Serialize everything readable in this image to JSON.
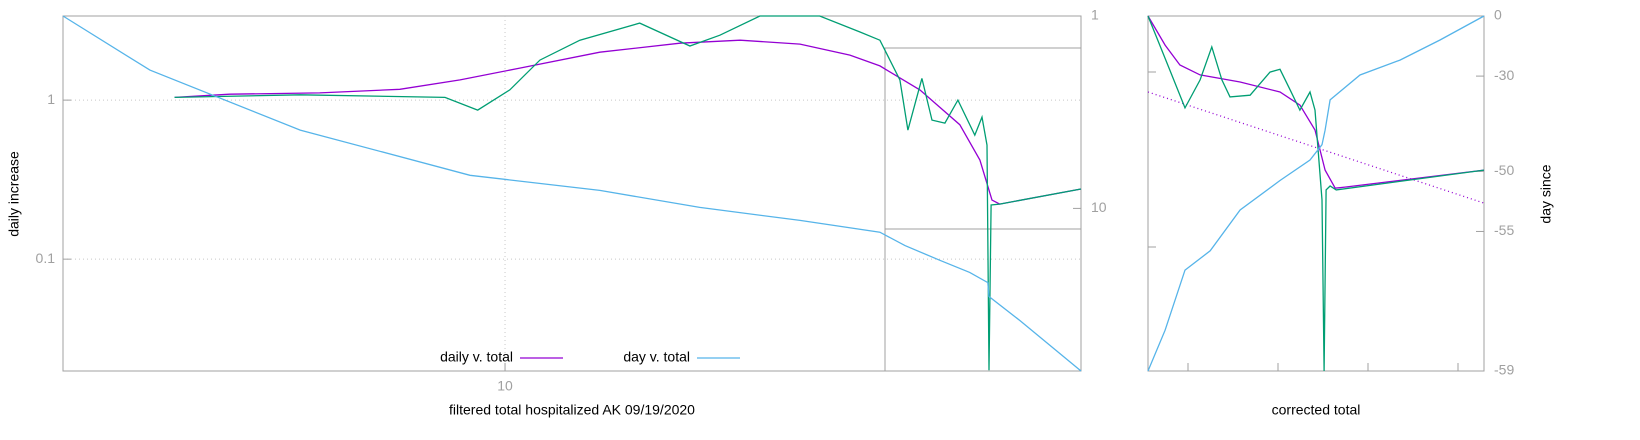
{
  "chart_data": [
    {
      "type": "line",
      "xlabel": "filtered total hospitalized AK 09/19/2020",
      "ylabel": "daily increase",
      "xlog": true,
      "ylog": true,
      "y2log": true,
      "grid": true,
      "legend": "bottom",
      "xlim": [
        4,
        33
      ],
      "ylim": [
        0.0198,
        3.38
      ],
      "y2lim": [
        70,
        1
      ],
      "xticks": [
        10
      ],
      "yticks": [
        0.1,
        1
      ],
      "y2ticks": [
        1,
        10
      ],
      "series": [
        {
          "name": "daily v. total",
          "color": "#9400d3",
          "x": [
            5.04,
            5.65,
            6.81,
            8.04,
            9.11,
            10.31,
            12.17,
            14.37,
            16.28,
            18.43,
            20.44,
            21.75,
            23.63,
            25.67,
            26.76,
            27.44,
            27.88,
            33.0
          ],
          "values": [
            1.04,
            1.09,
            1.11,
            1.17,
            1.34,
            1.59,
            2.0,
            2.28,
            2.38,
            2.25,
            1.92,
            1.64,
            1.16,
            0.7,
            0.42,
            0.235,
            0.222,
            0.276
          ]
        },
        {
          "color": "#009e73",
          "x": [
            5.04,
            6.54,
            8.83,
            9.45,
            10.1,
            10.75,
            11.68,
            13.22,
            14.67,
            15.61,
            16.96,
            19.2,
            20.87,
            21.75,
            22.67,
            23.05,
            23.73,
            24.23,
            24.89,
            25.57,
            26.48,
            26.88,
            27.16,
            27.27,
            27.39,
            27.88,
            33.0
          ],
          "values": [
            1.04,
            1.08,
            1.04,
            0.865,
            1.16,
            1.785,
            2.38,
            3.05,
            2.19,
            2.56,
            3.38,
            3.38,
            2.68,
            2.38,
            1.34,
            0.648,
            1.37,
            0.749,
            0.717,
            1.0,
            0.603,
            0.782,
            0.521,
            0.02,
            0.219,
            0.222,
            0.276
          ]
        },
        {
          "name": "day v. total",
          "color": "#56b4e9",
          "axis": "y2",
          "x": [
            4.0,
            4.79,
            6.54,
            9.3,
            12.17,
            14.97,
            18.43,
            21.75,
            22.91,
            24.63,
            26.2,
            27.2,
            27.27,
            29.08,
            33.0
          ],
          "values": [
            1.0,
            1.91,
            3.92,
            6.73,
            8.06,
            9.88,
            11.55,
            13.3,
            15.6,
            18.6,
            21.5,
            24.3,
            28.7,
            38.3,
            70
          ]
        }
      ]
    },
    {
      "type": "line",
      "xlabel": "corrected total",
      "y2label": "day since",
      "y2log": true,
      "xlim": [
        0,
        100
      ],
      "ylim": [
        0,
        100
      ],
      "y2lim": [
        -59,
        0
      ],
      "y2ticks": [
        -59,
        -55,
        -50,
        -30,
        0
      ],
      "series": [
        {
          "color": "#9400d3",
          "dashed": true,
          "x": [
            0,
            100
          ],
          "values": [
            78.6,
            47.3
          ]
        },
        {
          "color": "#9400d3",
          "x": [
            0,
            5.1,
            9.5,
            15.5,
            27.4,
            39.3,
            45.2,
            49.7,
            52.7,
            55.7,
            58.6,
            100
          ],
          "values": [
            100,
            91.8,
            86.2,
            83.4,
            81.4,
            78.6,
            74.9,
            67.9,
            56.6,
            51.5,
            51.8,
            56.6
          ]
        },
        {
          "color": "#009e73",
          "x": [
            0,
            6.5,
            11.0,
            15.5,
            19.0,
            22.0,
            24.4,
            30.4,
            36.3,
            39.3,
            42.3,
            45.2,
            48.2,
            49.7,
            51.8,
            52.4,
            53.0,
            54.2,
            56.0,
            100
          ],
          "values": [
            100,
            84.8,
            74.1,
            82.0,
            91.3,
            82.0,
            77.2,
            77.7,
            84.2,
            85.0,
            79.2,
            73.5,
            78.6,
            73.5,
            48.2,
            0,
            51.0,
            52.1,
            51.0,
            56.6
          ]
        },
        {
          "color": "#56b4e9",
          "axis": "y2",
          "x": [
            0,
            5.1,
            11.0,
            18.5,
            27.4,
            39.3,
            48.2,
            51.8,
            52.7,
            54.2,
            63.1,
            75.0,
            86.9,
            100
          ],
          "values": [
            -59,
            -58.4,
            -56.8,
            -56.0,
            -53.6,
            -51.0,
            -48.6,
            -46.4,
            -43.9,
            -37.2,
            -29.6,
            -23.9,
            -14.5,
            0
          ]
        }
      ]
    }
  ]
}
